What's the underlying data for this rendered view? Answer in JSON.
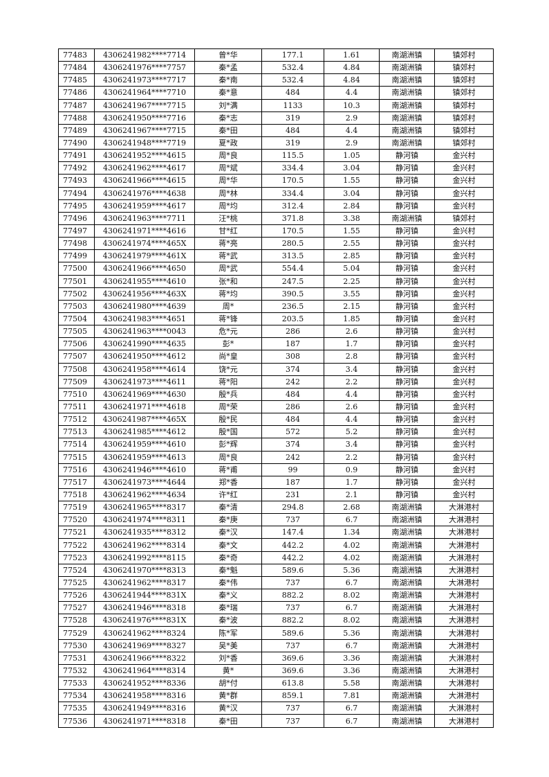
{
  "table": {
    "rows": [
      [
        "77483",
        "4306241982****7714",
        "曾*华",
        "177.1",
        "1.61",
        "南湖洲镇",
        "镇郊村"
      ],
      [
        "77484",
        "4306241976****7757",
        "秦*孟",
        "532.4",
        "4.84",
        "南湖洲镇",
        "镇郊村"
      ],
      [
        "77485",
        "4306241973****7717",
        "秦*南",
        "532.4",
        "4.84",
        "南湖洲镇",
        "镇郊村"
      ],
      [
        "77486",
        "4306241964****7710",
        "秦*意",
        "484",
        "4.4",
        "南湖洲镇",
        "镇郊村"
      ],
      [
        "77487",
        "4306241967****7715",
        "刘*满",
        "1133",
        "10.3",
        "南湖洲镇",
        "镇郊村"
      ],
      [
        "77488",
        "4306241950****7716",
        "秦*志",
        "319",
        "2.9",
        "南湖洲镇",
        "镇郊村"
      ],
      [
        "77489",
        "4306241967****7715",
        "秦*田",
        "484",
        "4.4",
        "南湖洲镇",
        "镇郊村"
      ],
      [
        "77490",
        "4306241948****7719",
        "夏*政",
        "319",
        "2.9",
        "南湖洲镇",
        "镇郊村"
      ],
      [
        "77491",
        "4306241952****4615",
        "周*良",
        "115.5",
        "1.05",
        "静河镇",
        "金兴村"
      ],
      [
        "77492",
        "4306241962****4617",
        "周*斌",
        "334.4",
        "3.04",
        "静河镇",
        "金兴村"
      ],
      [
        "77493",
        "4306241966****4615",
        "周*华",
        "170.5",
        "1.55",
        "静河镇",
        "金兴村"
      ],
      [
        "77494",
        "4306241976****4638",
        "周*林",
        "334.4",
        "3.04",
        "静河镇",
        "金兴村"
      ],
      [
        "77495",
        "4306241959****4617",
        "周*均",
        "312.4",
        "2.84",
        "静河镇",
        "金兴村"
      ],
      [
        "77496",
        "4306241963****7711",
        "汪*桃",
        "371.8",
        "3.38",
        "南湖洲镇",
        "镇郊村"
      ],
      [
        "77497",
        "4306241971****4616",
        "甘*红",
        "170.5",
        "1.55",
        "静河镇",
        "金兴村"
      ],
      [
        "77498",
        "4306241974****465X",
        "蒋*亮",
        "280.5",
        "2.55",
        "静河镇",
        "金兴村"
      ],
      [
        "77499",
        "4306241979****461X",
        "蒋*武",
        "313.5",
        "2.85",
        "静河镇",
        "金兴村"
      ],
      [
        "77500",
        "4306241966****4650",
        "周*武",
        "554.4",
        "5.04",
        "静河镇",
        "金兴村"
      ],
      [
        "77501",
        "4306241955****4610",
        "张*和",
        "247.5",
        "2.25",
        "静河镇",
        "金兴村"
      ],
      [
        "77502",
        "4306241956****463X",
        "蒋*均",
        "390.5",
        "3.55",
        "静河镇",
        "金兴村"
      ],
      [
        "77503",
        "4306241980****4639",
        "周*",
        "236.5",
        "2.15",
        "静河镇",
        "金兴村"
      ],
      [
        "77504",
        "4306241983****4651",
        "蒋*锋",
        "203.5",
        "1.85",
        "静河镇",
        "金兴村"
      ],
      [
        "77505",
        "4306241963****0043",
        "危*元",
        "286",
        "2.6",
        "静河镇",
        "金兴村"
      ],
      [
        "77506",
        "4306241990****4635",
        "彭*",
        "187",
        "1.7",
        "静河镇",
        "金兴村"
      ],
      [
        "77507",
        "4306241950****4612",
        "尚*皇",
        "308",
        "2.8",
        "静河镇",
        "金兴村"
      ],
      [
        "77508",
        "4306241958****4614",
        "饶*元",
        "374",
        "3.4",
        "静河镇",
        "金兴村"
      ],
      [
        "77509",
        "4306241973****4611",
        "蒋*阳",
        "242",
        "2.2",
        "静河镇",
        "金兴村"
      ],
      [
        "77510",
        "4306241969****4630",
        "殷*兵",
        "484",
        "4.4",
        "静河镇",
        "金兴村"
      ],
      [
        "77511",
        "4306241971****4618",
        "周*荣",
        "286",
        "2.6",
        "静河镇",
        "金兴村"
      ],
      [
        "77512",
        "4306241987****465X",
        "殷*民",
        "484",
        "4.4",
        "静河镇",
        "金兴村"
      ],
      [
        "77513",
        "4306241985****4612",
        "殷*国",
        "572",
        "5.2",
        "静河镇",
        "金兴村"
      ],
      [
        "77514",
        "4306241959****4610",
        "彭*辉",
        "374",
        "3.4",
        "静河镇",
        "金兴村"
      ],
      [
        "77515",
        "4306241959****4613",
        "周*良",
        "242",
        "2.2",
        "静河镇",
        "金兴村"
      ],
      [
        "77516",
        "4306241946****4610",
        "蒋*甫",
        "99",
        "0.9",
        "静河镇",
        "金兴村"
      ],
      [
        "77517",
        "4306241973****4644",
        "郑*香",
        "187",
        "1.7",
        "静河镇",
        "金兴村"
      ],
      [
        "77518",
        "4306241962****4634",
        "许*红",
        "231",
        "2.1",
        "静河镇",
        "金兴村"
      ],
      [
        "77519",
        "4306241965****8317",
        "秦*清",
        "294.8",
        "2.68",
        "南湖洲镇",
        "大淋港村"
      ],
      [
        "77520",
        "4306241974****8311",
        "秦*庚",
        "737",
        "6.7",
        "南湖洲镇",
        "大淋港村"
      ],
      [
        "77521",
        "4306241935****8312",
        "秦*汉",
        "147.4",
        "1.34",
        "南湖洲镇",
        "大淋港村"
      ],
      [
        "77522",
        "4306241962****8314",
        "秦*文",
        "442.2",
        "4.02",
        "南湖洲镇",
        "大淋港村"
      ],
      [
        "77523",
        "4306241992****8115",
        "秦*奇",
        "442.2",
        "4.02",
        "南湖洲镇",
        "大淋港村"
      ],
      [
        "77524",
        "4306241970****8313",
        "秦*魁",
        "589.6",
        "5.36",
        "南湖洲镇",
        "大淋港村"
      ],
      [
        "77525",
        "4306241962****8317",
        "秦*伟",
        "737",
        "6.7",
        "南湖洲镇",
        "大淋港村"
      ],
      [
        "77526",
        "4306241944****831X",
        "秦*义",
        "882.2",
        "8.02",
        "南湖洲镇",
        "大淋港村"
      ],
      [
        "77527",
        "4306241946****8318",
        "秦*瑞",
        "737",
        "6.7",
        "南湖洲镇",
        "大淋港村"
      ],
      [
        "77528",
        "4306241976****831X",
        "秦*波",
        "882.2",
        "8.02",
        "南湖洲镇",
        "大淋港村"
      ],
      [
        "77529",
        "4306241962****8324",
        "陈*军",
        "589.6",
        "5.36",
        "南湖洲镇",
        "大淋港村"
      ],
      [
        "77530",
        "4306241969****8327",
        "吴*美",
        "737",
        "6.7",
        "南湖洲镇",
        "大淋港村"
      ],
      [
        "77531",
        "4306241966****8322",
        "刘*香",
        "369.6",
        "3.36",
        "南湖洲镇",
        "大淋港村"
      ],
      [
        "77532",
        "4306241964****8314",
        "黄*",
        "369.6",
        "3.36",
        "南湖洲镇",
        "大淋港村"
      ],
      [
        "77533",
        "4306241952****8336",
        "胡*付",
        "613.8",
        "5.58",
        "南湖洲镇",
        "大淋港村"
      ],
      [
        "77534",
        "4306241958****8316",
        "黄*群",
        "859.1",
        "7.81",
        "南湖洲镇",
        "大淋港村"
      ],
      [
        "77535",
        "4306241949****8316",
        "黄*汉",
        "737",
        "6.7",
        "南湖洲镇",
        "大淋港村"
      ],
      [
        "77536",
        "4306241971****8318",
        "秦*田",
        "737",
        "6.7",
        "南湖洲镇",
        "大淋港村"
      ]
    ]
  }
}
